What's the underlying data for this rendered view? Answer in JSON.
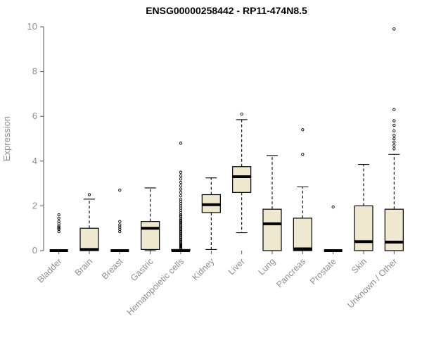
{
  "title": "ENSG00000258442 - RP11-474N8.5",
  "colors": {
    "box_fill": "#efe8d0",
    "box_stroke": "#000000",
    "axis": "#555555",
    "label": "#8f8f8f",
    "title": "#000000",
    "background": "#ffffff"
  },
  "chart_data": {
    "type": "boxplot",
    "title": "ENSG00000258442 - RP11-474N8.5",
    "xlabel": "",
    "ylabel": "Expression",
    "ylim": [
      0,
      10
    ],
    "yticks": [
      0,
      2,
      4,
      6,
      8,
      10
    ],
    "grid": false,
    "legend": "none",
    "categories": [
      "Bladder",
      "Brain",
      "Breast",
      "Gastric",
      "Hematopoietic cells",
      "Kidney",
      "Liver",
      "Lung",
      "Pancreas",
      "Prostate",
      "Skin",
      "Unknown / Other"
    ],
    "boxes": [
      {
        "name": "Bladder",
        "low": 0,
        "q1": 0,
        "median": 0,
        "q3": 0,
        "high": 0,
        "outliers": [
          0.85,
          0.95,
          1.0,
          1.05,
          1.1,
          1.2,
          1.3,
          1.45,
          1.6
        ]
      },
      {
        "name": "Brain",
        "low": 0,
        "q1": 0,
        "median": 0.05,
        "q3": 1.0,
        "high": 2.3,
        "outliers": [
          2.5
        ]
      },
      {
        "name": "Breast",
        "low": 0,
        "q1": 0,
        "median": 0,
        "q3": 0,
        "high": 0,
        "outliers": [
          0.85,
          0.95,
          1.05,
          1.15,
          1.3,
          2.7
        ]
      },
      {
        "name": "Gastric",
        "low": 0,
        "q1": 0.05,
        "median": 1.0,
        "q3": 1.3,
        "high": 2.8,
        "outliers": []
      },
      {
        "name": "Hematopoietic cells",
        "low": 0,
        "q1": 0,
        "median": 0,
        "q3": 0.05,
        "high": 0.05,
        "outliers": [
          0.1,
          0.14,
          0.18,
          0.22,
          0.26,
          0.3,
          0.35,
          0.4,
          0.45,
          0.5,
          0.55,
          0.6,
          0.65,
          0.7,
          0.75,
          0.8,
          0.85,
          0.9,
          0.95,
          1.0,
          1.05,
          1.1,
          1.15,
          1.2,
          1.25,
          1.3,
          1.35,
          1.4,
          1.5,
          1.55,
          1.6,
          1.7,
          1.8,
          1.9,
          2.0,
          2.1,
          2.2,
          2.3,
          2.45,
          2.6,
          2.75,
          2.9,
          3.05,
          3.2,
          3.35,
          3.5,
          4.8
        ]
      },
      {
        "name": "Kidney",
        "low": 0.05,
        "q1": 1.7,
        "median": 2.05,
        "q3": 2.5,
        "high": 3.25,
        "outliers": []
      },
      {
        "name": "Liver",
        "low": 0.8,
        "q1": 2.6,
        "median": 3.3,
        "q3": 3.75,
        "high": 5.85,
        "outliers": [
          6.1
        ]
      },
      {
        "name": "Lung",
        "low": 0,
        "q1": 0,
        "median": 1.2,
        "q3": 1.85,
        "high": 4.25,
        "outliers": []
      },
      {
        "name": "Pancreas",
        "low": 0,
        "q1": 0,
        "median": 0.08,
        "q3": 1.45,
        "high": 2.85,
        "outliers": [
          4.3,
          5.4
        ]
      },
      {
        "name": "Prostate",
        "low": 0,
        "q1": 0,
        "median": 0,
        "q3": 0,
        "high": 0,
        "outliers": [
          1.95
        ]
      },
      {
        "name": "Skin",
        "low": 0,
        "q1": 0,
        "median": 0.4,
        "q3": 2.0,
        "high": 3.85,
        "outliers": []
      },
      {
        "name": "Unknown / Other",
        "low": 0,
        "q1": 0,
        "median": 0.38,
        "q3": 1.85,
        "high": 4.3,
        "outliers": [
          4.55,
          4.7,
          4.85,
          5.0,
          5.15,
          5.35,
          5.6,
          5.8,
          6.3,
          9.9
        ]
      }
    ]
  }
}
